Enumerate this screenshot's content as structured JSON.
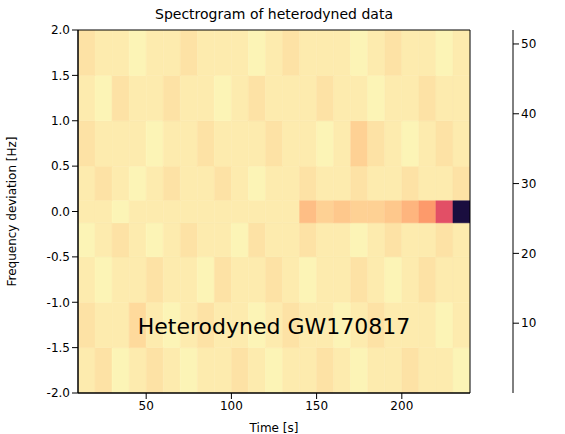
{
  "chart_data": {
    "type": "heatmap",
    "title": "Spectrogram of heterodyned data",
    "x_label": "Time [s]",
    "y_label": "Frequency deviation [Hz]",
    "annotation": "Heterodyned GW170817",
    "xlim": [
      10,
      240
    ],
    "xticks": [
      50,
      100,
      150,
      200
    ],
    "ylim": [
      -2,
      2
    ],
    "yticks": [
      {
        "value": -2,
        "label": "-2.0"
      },
      {
        "value": -1.5,
        "label": "-1.5"
      },
      {
        "value": -1,
        "label": "-1.0"
      },
      {
        "value": -0.5,
        "label": "-0.5"
      },
      {
        "value": 0,
        "label": "0.0"
      },
      {
        "value": 0.5,
        "label": "0.5"
      },
      {
        "value": 1,
        "label": "1.0"
      },
      {
        "value": 1.5,
        "label": "1.5"
      },
      {
        "value": 2,
        "label": "2.0"
      }
    ],
    "heatmap": {
      "x_edges": [
        10,
        20,
        30,
        40,
        50,
        60,
        70,
        80,
        90,
        100,
        110,
        120,
        130,
        140,
        150,
        160,
        170,
        180,
        190,
        200,
        210,
        220,
        230,
        240
      ],
      "y_edges": [
        -2,
        -1.5,
        -1,
        -0.5,
        -0.125,
        0.125,
        0.5,
        1,
        1.5,
        2
      ],
      "cells": [
        [
          2,
          3,
          1,
          2,
          3,
          2,
          1,
          2,
          2,
          3,
          2,
          1,
          2,
          2,
          3,
          2,
          1,
          2,
          2,
          3,
          2,
          2,
          1
        ],
        [
          3,
          2,
          2,
          4,
          2,
          1,
          2,
          3,
          2,
          2,
          1,
          2,
          3,
          2,
          2,
          1,
          2,
          3,
          2,
          2,
          2,
          1,
          2
        ],
        [
          2,
          1,
          2,
          2,
          3,
          2,
          2,
          1,
          3,
          2,
          2,
          3,
          2,
          1,
          2,
          2,
          3,
          2,
          1,
          2,
          3,
          2,
          2
        ],
        [
          1,
          2,
          3,
          2,
          1,
          2,
          3,
          2,
          2,
          1,
          3,
          2,
          2,
          3,
          2,
          2,
          1,
          2,
          3,
          2,
          2,
          3,
          2
        ],
        [
          2,
          2,
          1,
          2,
          2,
          2,
          2,
          2,
          2,
          2,
          2,
          2,
          2,
          7,
          5,
          6,
          5,
          5,
          6,
          8,
          11,
          20,
          46
        ],
        [
          2,
          3,
          2,
          1,
          2,
          3,
          2,
          2,
          3,
          2,
          1,
          2,
          2,
          3,
          2,
          2,
          3,
          2,
          2,
          3,
          2,
          2,
          3
        ],
        [
          3,
          2,
          2,
          2,
          1,
          2,
          2,
          3,
          2,
          2,
          2,
          3,
          2,
          2,
          1,
          2,
          5,
          3,
          2,
          1,
          2,
          3,
          2
        ],
        [
          2,
          1,
          3,
          2,
          2,
          3,
          2,
          2,
          1,
          2,
          3,
          2,
          2,
          2,
          3,
          2,
          2,
          1,
          2,
          2,
          3,
          2,
          2
        ],
        [
          3,
          2,
          2,
          1,
          2,
          2,
          3,
          2,
          2,
          2,
          1,
          2,
          3,
          2,
          2,
          2,
          1,
          2,
          3,
          2,
          2,
          1,
          2
        ]
      ],
      "colorbar": {
        "range": [
          0,
          52
        ],
        "ticks": [
          10,
          20,
          30,
          40,
          50
        ]
      }
    }
  }
}
